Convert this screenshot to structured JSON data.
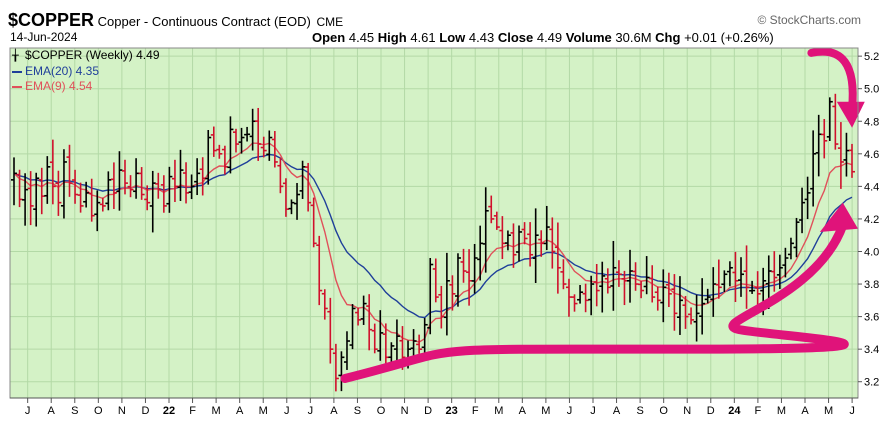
{
  "header": {
    "symbol": "$COPPER",
    "name": "Copper - Continuous Contract (EOD)",
    "exchange": "CME",
    "date": "14-Jun-2024",
    "brand": "© StockCharts.com",
    "open_label": "Open",
    "open": "4.45",
    "high_label": "High",
    "high": "4.61",
    "low_label": "Low",
    "low": "4.43",
    "close_label": "Close",
    "close": "4.49",
    "volume_label": "Volume",
    "volume": "30.6M",
    "chg_label": "Chg",
    "chg": "+0.01 (+0.26%)"
  },
  "legend": {
    "price": "$COPPER (Weekly) 4.49",
    "ema20": "EMA(20) 4.35",
    "ema9": "EMA(9) 4.54"
  },
  "colors": {
    "plot_bg": "#d4f2c6",
    "grid": "#b3d9a6",
    "up": "#000000",
    "down": "#d0102c",
    "ema20": "#1f3f9a",
    "ema9": "#e0505a",
    "annotation": "#e0137a"
  },
  "chart_data": {
    "type": "ohlc",
    "title": "$COPPER (Weekly)",
    "ylim": [
      3.1,
      5.25
    ],
    "yticks": [
      3.2,
      3.4,
      3.6,
      3.8,
      4.0,
      4.2,
      4.4,
      4.6,
      4.8,
      5.0,
      5.2
    ],
    "ytick_labels": [
      "3.2",
      "3.4",
      "3.6",
      "3.8",
      "4.0",
      "4.2",
      "4.4",
      "4.6",
      "4.8",
      "5.0",
      "5.2"
    ],
    "xticks": [
      "J",
      "A",
      "S",
      "O",
      "N",
      "D",
      "22",
      "F",
      "M",
      "A",
      "M",
      "J",
      "J",
      "A",
      "S",
      "O",
      "N",
      "D",
      "23",
      "F",
      "M",
      "A",
      "M",
      "J",
      "J",
      "A",
      "S",
      "O",
      "N",
      "D",
      "24",
      "F",
      "M",
      "A",
      "M",
      "J"
    ],
    "closes": [
      4.48,
      4.32,
      4.38,
      4.28,
      4.45,
      4.34,
      4.52,
      4.4,
      4.3,
      4.55,
      4.42,
      4.35,
      4.28,
      4.36,
      4.22,
      4.3,
      4.28,
      4.44,
      4.36,
      4.5,
      4.42,
      4.38,
      4.48,
      4.35,
      4.3,
      4.42,
      4.38,
      4.28,
      4.46,
      4.4,
      4.5,
      4.36,
      4.4,
      4.48,
      4.45,
      4.7,
      4.62,
      4.6,
      4.52,
      4.75,
      4.66,
      4.7,
      4.72,
      4.8,
      4.66,
      4.62,
      4.7,
      4.55,
      4.4,
      4.26,
      4.3,
      4.35,
      4.52,
      4.3,
      4.05,
      3.76,
      3.65,
      3.4,
      3.22,
      3.35,
      3.45,
      3.65,
      3.58,
      3.68,
      3.52,
      3.4,
      3.5,
      3.35,
      3.42,
      3.48,
      3.35,
      3.4,
      3.45,
      3.4,
      3.55,
      3.92,
      3.72,
      3.6,
      3.82,
      3.74,
      3.96,
      3.88,
      3.82,
      3.96,
      4.05,
      4.25,
      4.2,
      4.15,
      4.05,
      4.1,
      3.98,
      4.12,
      4.08,
      3.98,
      4.1,
      4.05,
      4.15,
      4.0,
      3.9,
      3.8,
      3.72,
      3.68,
      3.75,
      3.7,
      3.8,
      3.76,
      3.85,
      3.78,
      3.9,
      3.86,
      3.82,
      3.88,
      3.8,
      3.76,
      3.84,
      3.72,
      3.7,
      3.78,
      3.74,
      3.62,
      3.7,
      3.6,
      3.58,
      3.62,
      3.68,
      3.72,
      3.8,
      3.78,
      3.86,
      3.9,
      3.82,
      3.86,
      3.78,
      3.76,
      3.74,
      3.82,
      3.88,
      3.84,
      3.9,
      3.96,
      4.05,
      4.18,
      4.3,
      4.36,
      4.6,
      4.72,
      4.68,
      4.92,
      4.66,
      4.55,
      4.62,
      4.49
    ],
    "series": [
      {
        "name": "EMA(20)",
        "last": 4.35
      },
      {
        "name": "EMA(9)",
        "last": 4.54
      }
    ],
    "annotations": [
      {
        "type": "curved-arrow-down",
        "at": "top-right near May 24 peak"
      },
      {
        "type": "rising-curve-arrow-up",
        "from": "Aug 22",
        "to": "Jun 24"
      }
    ]
  }
}
